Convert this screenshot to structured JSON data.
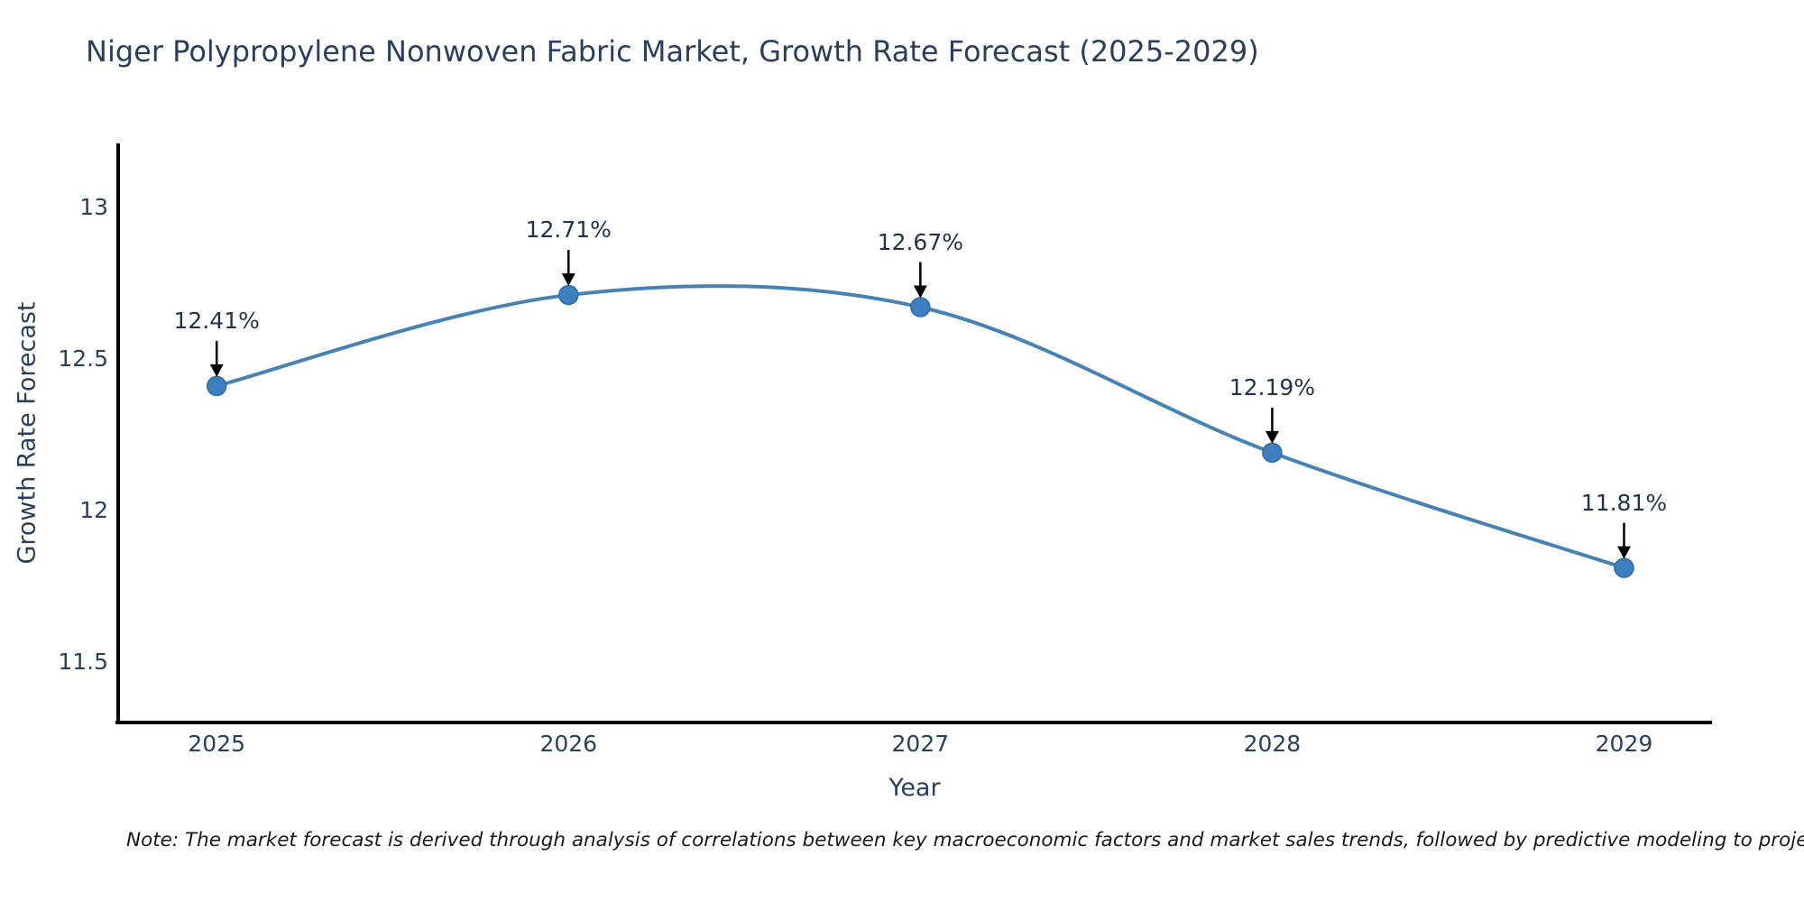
{
  "background_color": "#ffffff",
  "text_color": "#2a3f5f",
  "note": {
    "text": "Note: The market forecast is derived through analysis of correlations between key macroeconomic factors and market sales trends, followed by predictive modeling to project future sal"
  },
  "chart_data": {
    "type": "line",
    "title": "Niger Polypropylene Nonwoven Fabric Market, Growth Rate Forecast (2025-2029)",
    "xlabel": "Year",
    "ylabel": "Growth Rate Forecast",
    "x": [
      2025,
      2026,
      2027,
      2028,
      2029
    ],
    "values": [
      12.41,
      12.71,
      12.67,
      12.19,
      11.81
    ],
    "point_labels": [
      "12.41%",
      "12.71%",
      "12.67%",
      "12.19%",
      "11.81%"
    ],
    "xtick_labels": [
      "2025",
      "2026",
      "2027",
      "2028",
      "2029"
    ],
    "ytick_values": [
      11.5,
      12,
      12.5,
      13
    ],
    "ytick_labels": [
      "11.5",
      "12",
      "12.5",
      "13"
    ],
    "xlim": [
      2024.72,
      2029.25
    ],
    "ylim": [
      11.3,
      13.21
    ],
    "grid": false,
    "legend_position": "none",
    "smooth": true,
    "line_color": "#4682b4",
    "marker_color": "#3c7ebf",
    "marker_edge_color": "#2e6da4",
    "arrow_color": "#000000",
    "axis_color": "#000000"
  }
}
